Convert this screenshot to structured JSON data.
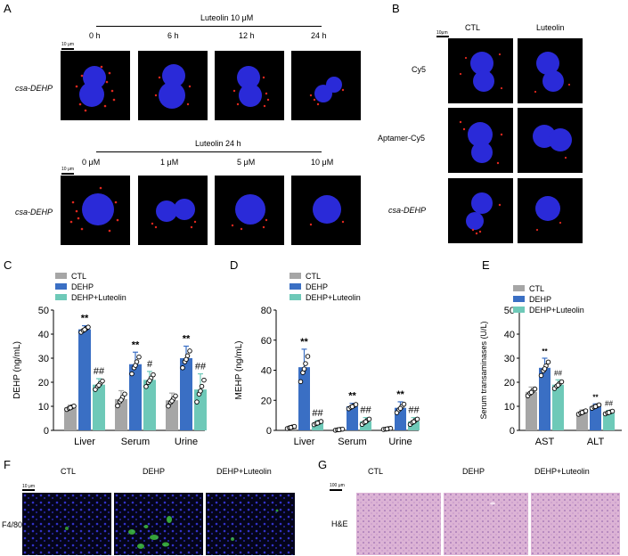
{
  "panels": {
    "A": {
      "letter": "A",
      "top_header": "Luteolin 10 μM",
      "top_times": [
        "0 h",
        "6 h",
        "12 h",
        "24 h"
      ],
      "top_row_label": "csa-DEHP",
      "bottom_header": "Luteolin 24 h",
      "bottom_doses": [
        "0 μM",
        "1 μM",
        "5 μM",
        "10 μM"
      ],
      "bottom_row_label": "csa-DEHP",
      "scale_label": "10 μm"
    },
    "B": {
      "letter": "B",
      "col_headers": [
        "CTL",
        "Luteolin"
      ],
      "row_labels": [
        "Cy5",
        "Aptamer-Cy5",
        "csa-DEHP"
      ],
      "scale_label": "10μm"
    },
    "C": {
      "letter": "C"
    },
    "D": {
      "letter": "D"
    },
    "E": {
      "letter": "E"
    },
    "F": {
      "letter": "F",
      "col_headers": [
        "CTL",
        "DEHP",
        "DEHP+Luteolin"
      ],
      "row_label": "F4/80",
      "scale_label": "10 μm"
    },
    "G": {
      "letter": "G",
      "col_headers": [
        "CTL",
        "DEHP",
        "DEHP+Luteolin"
      ],
      "row_label": "H&E",
      "scale_label": "100 μm"
    }
  },
  "colors": {
    "CTL": "#a6a6a6",
    "DEHP": "#3a6fc4",
    "DEHP+Luteolin": "#6ec9b8",
    "nucleus": "#2a2ad8",
    "dots": "#e0281e",
    "fluor_green": "#3fbf3f",
    "he_pink": "#d9a8cf"
  },
  "chart_data": [
    {
      "id": "C",
      "type": "bar",
      "ylabel": "DEHP (ng/mL)",
      "ylim": [
        0,
        50
      ],
      "yticks": [
        0,
        10,
        20,
        30,
        40,
        50
      ],
      "categories": [
        "Liver",
        "Serum",
        "Urine"
      ],
      "legend": [
        "CTL",
        "DEHP",
        "DEHP+Luteolin"
      ],
      "legend_position": "top-left",
      "series": [
        {
          "name": "CTL",
          "values": [
            9.5,
            13,
            12.5
          ],
          "errors": [
            1,
            3.5,
            3
          ]
        },
        {
          "name": "DEHP",
          "values": [
            42,
            27.5,
            30
          ],
          "errors": [
            1.5,
            5,
            5
          ]
        },
        {
          "name": "DEHP+Luteolin",
          "values": [
            19,
            21,
            17
          ],
          "errors": [
            2.5,
            3.5,
            6.5
          ]
        }
      ],
      "annotations": [
        {
          "category": "Liver",
          "series": "DEHP",
          "text": "**"
        },
        {
          "category": "Liver",
          "series": "DEHP+Luteolin",
          "text": "##"
        },
        {
          "category": "Serum",
          "series": "DEHP",
          "text": "**"
        },
        {
          "category": "Serum",
          "series": "DEHP+Luteolin",
          "text": "#"
        },
        {
          "category": "Urine",
          "series": "DEHP",
          "text": "**"
        },
        {
          "category": "Urine",
          "series": "DEHP+Luteolin",
          "text": "##"
        }
      ]
    },
    {
      "id": "D",
      "type": "bar",
      "ylabel": "MEHP (ng/mL)",
      "ylim": [
        0,
        80
      ],
      "yticks": [
        0,
        20,
        40,
        60,
        80
      ],
      "categories": [
        "Liver",
        "Serum",
        "Urine"
      ],
      "legend": [
        "CTL",
        "DEHP",
        "DEHP+Luteolin"
      ],
      "legend_position": "top-left",
      "series": [
        {
          "name": "CTL",
          "values": [
            2,
            0.5,
            1
          ],
          "errors": [
            1,
            0.5,
            0.5
          ]
        },
        {
          "name": "DEHP",
          "values": [
            42,
            16,
            15
          ],
          "errors": [
            12,
            2,
            4
          ]
        },
        {
          "name": "DEHP+Luteolin",
          "values": [
            5,
            6,
            6
          ],
          "errors": [
            1.5,
            2.5,
            2.5
          ]
        }
      ],
      "annotations": [
        {
          "category": "Liver",
          "series": "DEHP",
          "text": "**"
        },
        {
          "category": "Liver",
          "series": "DEHP+Luteolin",
          "text": "##"
        },
        {
          "category": "Serum",
          "series": "DEHP",
          "text": "**"
        },
        {
          "category": "Serum",
          "series": "DEHP+Luteolin",
          "text": "##"
        },
        {
          "category": "Urine",
          "series": "DEHP",
          "text": "**"
        },
        {
          "category": "Urine",
          "series": "DEHP+Luteolin",
          "text": "##"
        }
      ]
    },
    {
      "id": "E",
      "type": "bar",
      "ylabel": "Serum transaminases (U/L)",
      "ylim": [
        0,
        50
      ],
      "yticks": [
        0,
        10,
        20,
        30,
        40,
        50
      ],
      "categories": [
        "AST",
        "ALT"
      ],
      "legend": [
        "CTL",
        "DEHP",
        "DEHP+Luteolin"
      ],
      "legend_position": "top-left",
      "series": [
        {
          "name": "CTL",
          "values": [
            16,
            7.5
          ],
          "errors": [
            2,
            1
          ]
        },
        {
          "name": "DEHP",
          "values": [
            26,
            10
          ],
          "errors": [
            4,
            1
          ]
        },
        {
          "name": "DEHP+Luteolin",
          "values": [
            19,
            7.5
          ],
          "errors": [
            2,
            0.8
          ]
        }
      ],
      "annotations": [
        {
          "category": "AST",
          "series": "DEHP",
          "text": "**"
        },
        {
          "category": "AST",
          "series": "DEHP+Luteolin",
          "text": "##"
        },
        {
          "category": "ALT",
          "series": "DEHP",
          "text": "**"
        },
        {
          "category": "ALT",
          "series": "DEHP+Luteolin",
          "text": "##"
        }
      ]
    }
  ]
}
